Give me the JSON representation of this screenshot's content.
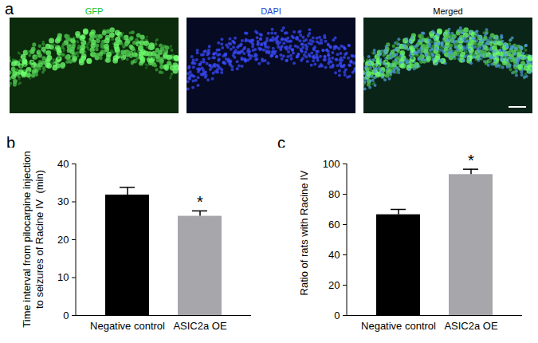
{
  "panel_a": {
    "panel": "a",
    "images": [
      "GFP",
      "DAPI",
      "Merged"
    ]
  },
  "chart_data": [
    {
      "type": "bar",
      "panel": "b",
      "categories": [
        "Negative control",
        "ASIC2a OE"
      ],
      "values": [
        31.8,
        26.2
      ],
      "errors": [
        2.0,
        1.4
      ],
      "colors": [
        "#000000",
        "#a7a6ab"
      ],
      "y_label": "Time interval from pilocarpine injection to seizures of Racine IV  (min)",
      "ylim": [
        0,
        40
      ],
      "yticks": [
        0,
        10,
        20,
        30,
        40
      ],
      "annotations": [
        {
          "category": "ASIC2a OE",
          "text": "*"
        }
      ]
    },
    {
      "type": "bar",
      "panel": "c",
      "categories": [
        "Negative control",
        "ASIC2a OE"
      ],
      "values": [
        66.5,
        93.0
      ],
      "errors": [
        3.5,
        3.5
      ],
      "colors": [
        "#000000",
        "#a7a6ab"
      ],
      "y_label": "Ratio of rats with Racine IV",
      "ylim": [
        0,
        100
      ],
      "yticks": [
        0,
        20,
        40,
        60,
        80,
        100
      ],
      "annotations": [
        {
          "category": "ASIC2a OE",
          "text": "*"
        }
      ]
    }
  ]
}
